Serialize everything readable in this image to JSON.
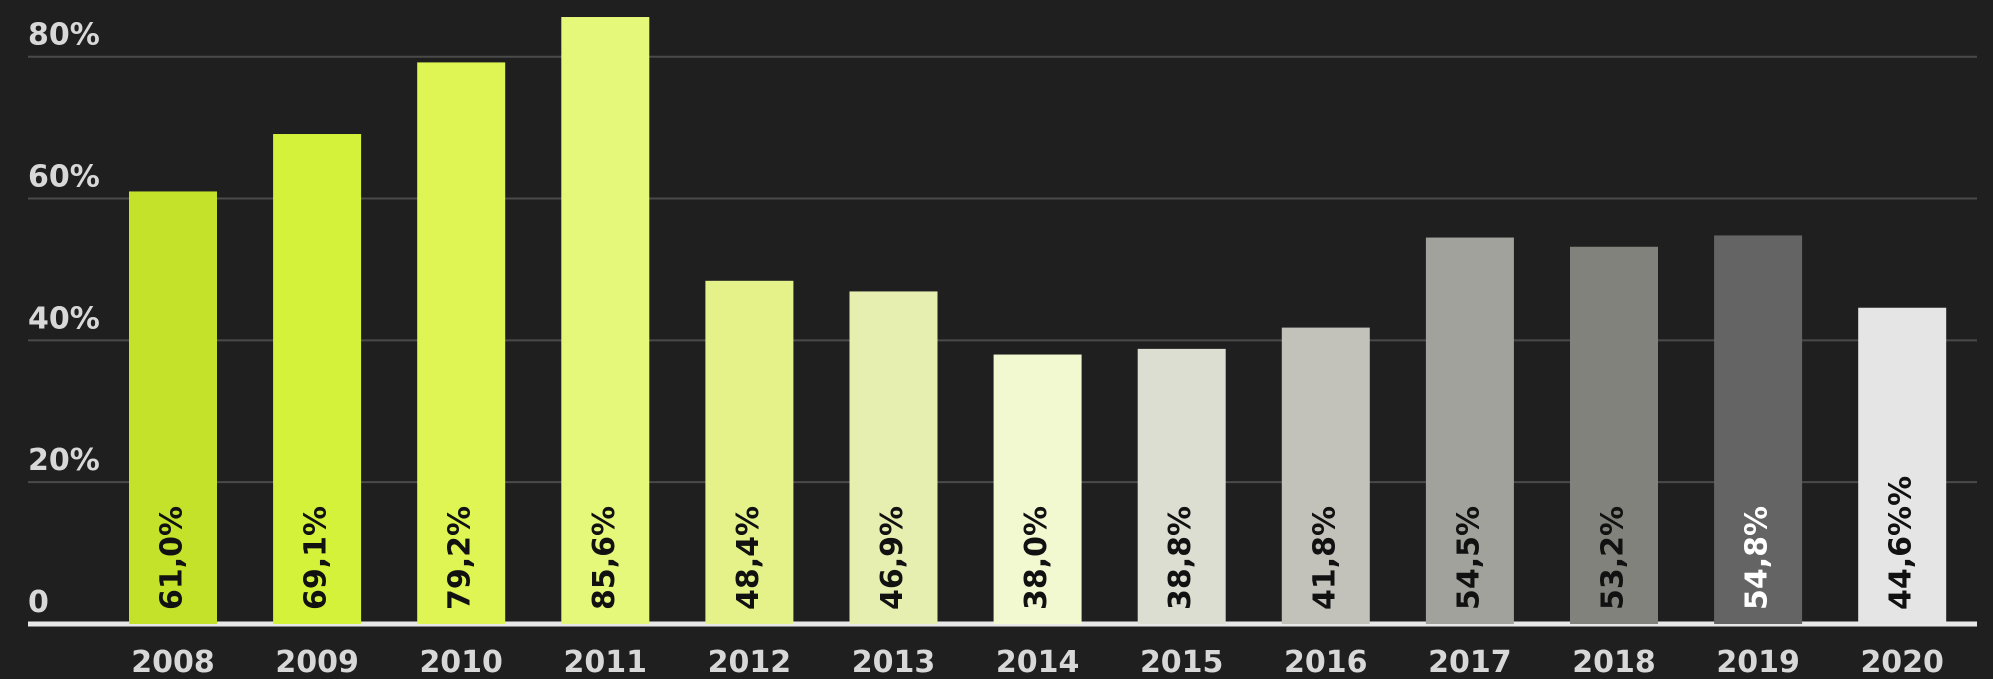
{
  "chart_data": {
    "type": "bar",
    "categories": [
      "2008",
      "2009",
      "2010",
      "2011",
      "2012",
      "2013",
      "2014",
      "2015",
      "2016",
      "2017",
      "2018",
      "2019",
      "2020"
    ],
    "values": [
      61.0,
      69.1,
      79.2,
      85.6,
      48.4,
      46.9,
      38.0,
      38.8,
      41.8,
      54.5,
      53.2,
      54.8,
      44.6
    ],
    "value_labels": [
      "61,0%",
      "69,1%",
      "79,2%",
      "85,6%",
      "48,4%",
      "46,9%",
      "38,0%",
      "38,8%",
      "41,8%",
      "54,5%",
      "53,2%",
      "54,8%",
      "44,6%%"
    ],
    "colors": [
      "#c5e22b",
      "#d5f23a",
      "#dff553",
      "#e6f87a",
      "#e5f28a",
      "#e6efaf",
      "#f2f8d0",
      "#dcded2",
      "#c2c2bb",
      "#a2a29c",
      "#82827c",
      "#646464",
      "#e5e5e5"
    ],
    "ylim": [
      0,
      88
    ],
    "yticks": [
      0,
      {
        "value": 20,
        "label": "20%"
      },
      {
        "value": 40,
        "label": "40%"
      },
      {
        "value": 60,
        "label": "60%"
      },
      {
        "value": 80,
        "label": "80%"
      }
    ],
    "grid": true
  }
}
